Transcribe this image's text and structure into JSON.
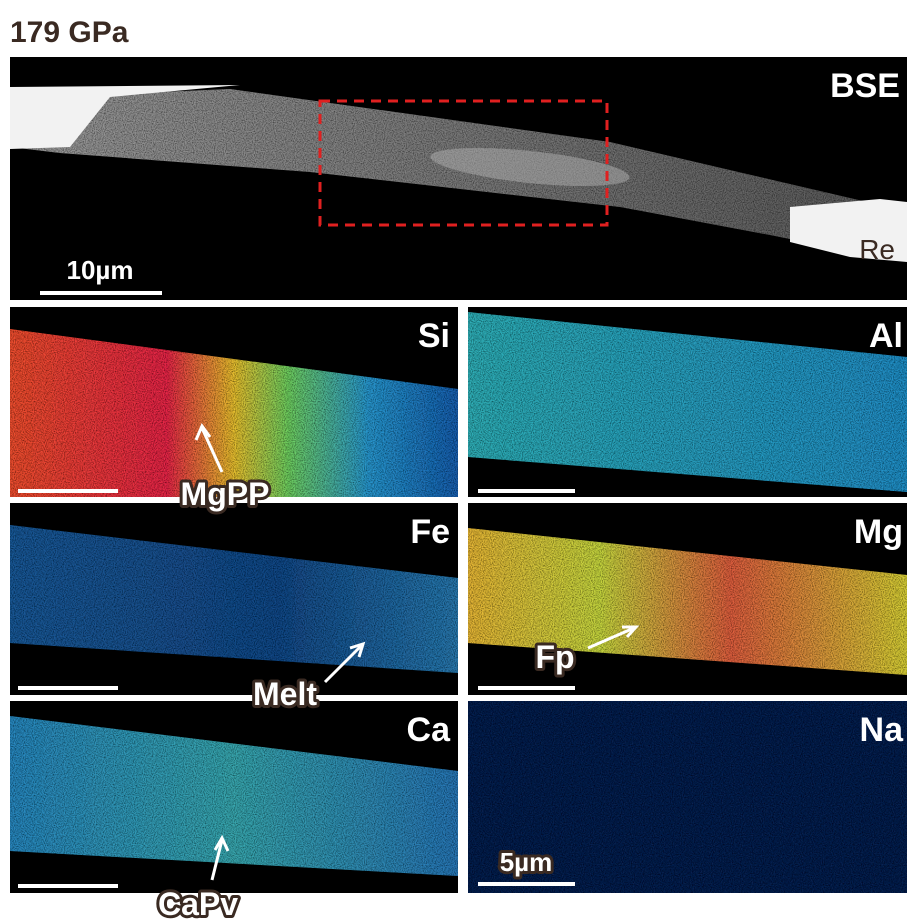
{
  "title": "179 GPa",
  "bse_panel": {
    "label": "BSE",
    "sample_label": "Re",
    "scale_bar": "10µm"
  },
  "maps": [
    {
      "label": "Si"
    },
    {
      "label": "Al"
    },
    {
      "label": "Fe"
    },
    {
      "label": "Mg"
    },
    {
      "label": "Ca"
    },
    {
      "label": "Na",
      "scale_bar": "5µm"
    }
  ],
  "annotations": [
    {
      "text": "MgPP"
    },
    {
      "text": "Fp"
    },
    {
      "text": "Melt"
    },
    {
      "text": "CaPv"
    }
  ]
}
